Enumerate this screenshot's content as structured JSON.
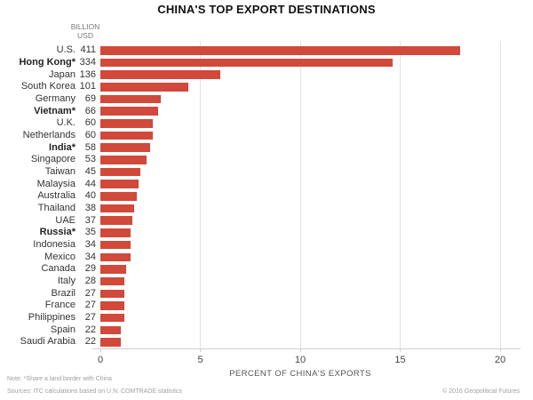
{
  "title": "CHINA'S TOP EXPORT DESTINATIONS",
  "value_column_header": {
    "line1": "BILLION",
    "line2": "USD"
  },
  "chart_data": {
    "type": "bar",
    "orientation": "horizontal",
    "title": "CHINA'S TOP EXPORT DESTINATIONS",
    "xlabel": "PERCENT OF CHINA'S EXPORTS",
    "value_units": "billion USD",
    "xlim": [
      0,
      20
    ],
    "xticks": [
      0,
      5,
      10,
      15,
      20
    ],
    "grid": true,
    "bar_color": "#d1493a",
    "bold_means": "shares a land border with China (asterisked labels)",
    "categories": [
      "U.S.",
      "Hong Kong*",
      "Japan",
      "South Korea",
      "Germany",
      "Vietnam*",
      "U.K.",
      "Netherlands",
      "India*",
      "Singapore",
      "Taiwan",
      "Malaysia",
      "Australia",
      "Thailand",
      "UAE",
      "Russia*",
      "Indonesia",
      "Mexico",
      "Canada",
      "Italy",
      "Brazil",
      "France",
      "Philippines",
      "Spain",
      "Saudi Arabia"
    ],
    "series": [
      {
        "name": "Export value (billion USD)",
        "values": [
          411,
          334,
          136,
          101,
          69,
          66,
          60,
          60,
          58,
          53,
          45,
          44,
          40,
          38,
          37,
          35,
          34,
          34,
          29,
          28,
          27,
          27,
          27,
          22,
          22
        ]
      },
      {
        "name": "Percent of China's exports",
        "values": [
          18.0,
          14.6,
          6.0,
          4.4,
          3.0,
          2.9,
          2.6,
          2.6,
          2.5,
          2.3,
          2.0,
          1.9,
          1.8,
          1.7,
          1.6,
          1.5,
          1.5,
          1.5,
          1.3,
          1.2,
          1.2,
          1.2,
          1.2,
          1.0,
          1.0
        ]
      }
    ],
    "bold_categories": [
      "Hong Kong*",
      "Vietnam*",
      "India*",
      "Russia*"
    ]
  },
  "footer": {
    "note": "Note: *Share a land border with China",
    "sources": "Sources: ITC calculations based on U.N. COMTRADE statistics",
    "copyright": "© 2016 Geopolitical Futures"
  }
}
